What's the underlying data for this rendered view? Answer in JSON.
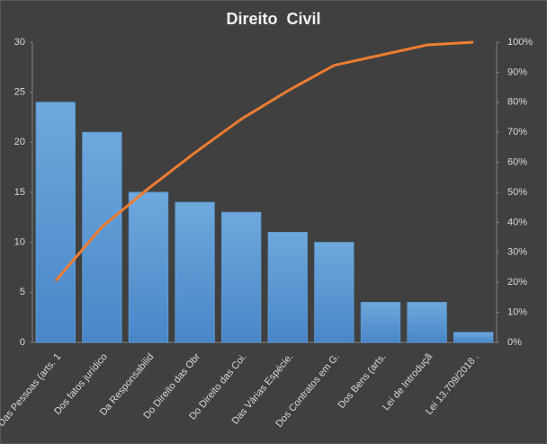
{
  "chart_data": {
    "type": "pareto",
    "title": "Direito  Civil",
    "categories": [
      "Das Pessoas (arts. 1",
      "Dos fatos jurídico",
      "Da Responsabilid",
      "Do Direito das Obr",
      "Do Direito das Coi.",
      "Das Várias Espécie.",
      "Dos Contratos em G.",
      "Dos Bens (arts.",
      "Lei de Introduçã",
      "Lei 13.709/2018 ."
    ],
    "series": [
      {
        "type": "bar",
        "color": "#5b9bd5",
        "values": [
          24,
          21,
          15,
          14,
          13,
          11,
          10,
          4,
          4,
          1
        ]
      },
      {
        "type": "line",
        "color": "#ed7d31",
        "axis": "y2",
        "values": [
          20.5,
          38.5,
          51.3,
          63.2,
          74.4,
          83.8,
          92.3,
          95.7,
          99.1,
          100
        ]
      }
    ],
    "ylim": [
      0,
      30
    ],
    "yticks": [
      0,
      5,
      10,
      15,
      20,
      25,
      30
    ],
    "y2lim": [
      0,
      100
    ],
    "y2ticks": [
      {
        "value": 0,
        "label": "0%"
      },
      {
        "value": 10,
        "label": "10%"
      },
      {
        "value": 20,
        "label": "20%"
      },
      {
        "value": 30,
        "label": "30%"
      },
      {
        "value": 40,
        "label": "40%"
      },
      {
        "value": 50,
        "label": "50%"
      },
      {
        "value": 60,
        "label": "60%"
      },
      {
        "value": 70,
        "label": "70%"
      },
      {
        "value": 80,
        "label": "80%"
      },
      {
        "value": 90,
        "label": "90%"
      },
      {
        "value": 100,
        "label": "100%"
      }
    ],
    "grid": false
  }
}
